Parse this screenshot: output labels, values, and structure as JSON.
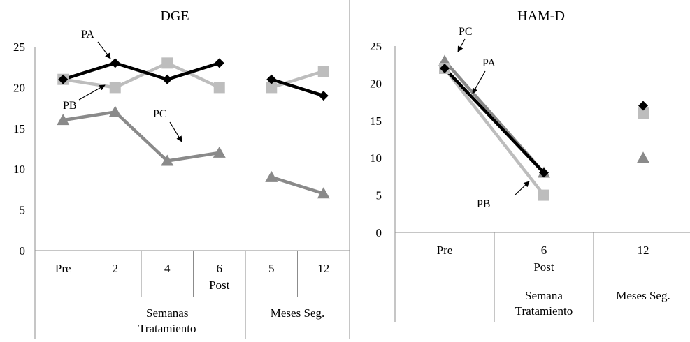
{
  "colors": {
    "PA": "#000000",
    "PB": "#bdbdbd",
    "PC": "#8a8a8a",
    "axis": "#8c8c8c"
  },
  "chart_data": [
    {
      "type": "line",
      "title": "DGE",
      "ylim": [
        0,
        25
      ],
      "yticks": [
        "0",
        "5",
        "10",
        "15",
        "20",
        "25"
      ],
      "categories": [
        "Pre",
        "2",
        "4",
        "6",
        "5",
        "12"
      ],
      "category_sublabels": [
        "",
        "",
        "",
        "Post",
        "",
        ""
      ],
      "groups": [
        {
          "label": "Semanas\nTratamiento",
          "span": [
            1,
            3
          ]
        },
        {
          "label": "Meses Seg.",
          "span": [
            4,
            5
          ]
        }
      ],
      "group_line1": [
        "Semanas",
        "Meses Seg."
      ],
      "group_line2": [
        "Tratamiento",
        ""
      ],
      "series": [
        {
          "name": "PA",
          "marker": "diamond",
          "segments": [
            [
              0,
              3
            ],
            [
              4,
              5
            ]
          ],
          "values": [
            21,
            23,
            21,
            23,
            21,
            19
          ]
        },
        {
          "name": "PB",
          "marker": "square",
          "segments": [
            [
              0,
              3
            ],
            [
              4,
              5
            ]
          ],
          "values": [
            21,
            20,
            23,
            20,
            20,
            22
          ]
        },
        {
          "name": "PC",
          "marker": "triangle",
          "segments": [
            [
              0,
              3
            ],
            [
              4,
              5
            ]
          ],
          "values": [
            16,
            17,
            11,
            12,
            9,
            7
          ]
        }
      ],
      "annotations": [
        "PA",
        "PB",
        "PC"
      ]
    },
    {
      "type": "line",
      "title": "HAM-D",
      "ylim": [
        0,
        25
      ],
      "yticks": [
        "0",
        "5",
        "10",
        "15",
        "20",
        "25"
      ],
      "categories": [
        "Pre",
        "6",
        "12"
      ],
      "category_sublabels": [
        "",
        "Post",
        ""
      ],
      "groups": [
        {
          "label": "Semana\nTratamiento",
          "span": [
            1,
            1
          ]
        },
        {
          "label": "Meses Seg.",
          "span": [
            2,
            2
          ]
        }
      ],
      "group_line1": [
        "Semana",
        "Meses Seg."
      ],
      "group_line2": [
        "Tratamiento",
        ""
      ],
      "series": [
        {
          "name": "PA",
          "marker": "diamond",
          "segments": [
            [
              0,
              1
            ],
            [
              2,
              2
            ]
          ],
          "values": [
            22,
            8,
            17
          ]
        },
        {
          "name": "PB",
          "marker": "square",
          "segments": [
            [
              0,
              1
            ],
            [
              2,
              2
            ]
          ],
          "values": [
            22,
            5,
            16
          ]
        },
        {
          "name": "PC",
          "marker": "triangle",
          "segments": [
            [
              0,
              1
            ],
            [
              2,
              2
            ]
          ],
          "values": [
            23,
            8,
            10
          ]
        }
      ],
      "annotations": [
        "PC",
        "PA",
        "PB"
      ]
    }
  ]
}
